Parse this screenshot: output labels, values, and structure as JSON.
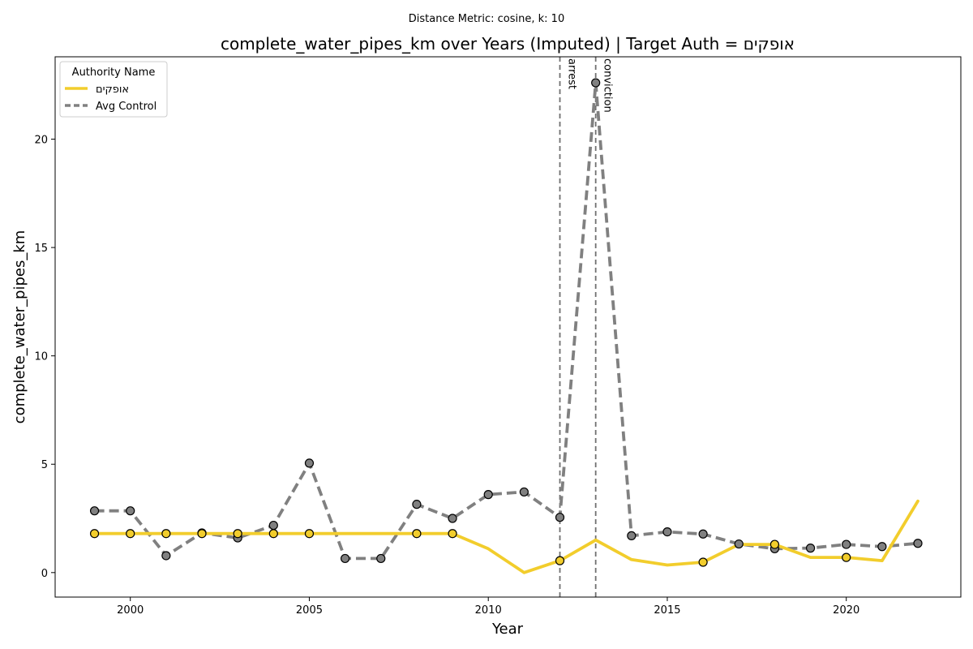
{
  "chart_data": {
    "type": "line",
    "suptitle": "Distance Metric: cosine, k: 10",
    "title": "complete_water_pipes_km over Years (Imputed) | Target Auth = אופקים",
    "xlabel": "Year",
    "ylabel": "complete_water_pipes_km",
    "xlim": [
      1997.9,
      2023.2
    ],
    "ylim": [
      -1.13,
      23.8
    ],
    "x_ticks": [
      2000,
      2005,
      2010,
      2015,
      2020
    ],
    "y_ticks": [
      0,
      5,
      10,
      15,
      20
    ],
    "grid": false,
    "legend": {
      "title": "Authority Name",
      "placement": "top-left"
    },
    "vlines": [
      {
        "x": 2012,
        "label": "arrest"
      },
      {
        "x": 2013,
        "label": "conviction"
      }
    ],
    "x": [
      1999,
      2000,
      2001,
      2002,
      2003,
      2004,
      2005,
      2006,
      2007,
      2008,
      2009,
      2010,
      2011,
      2012,
      2013,
      2014,
      2015,
      2016,
      2017,
      2018,
      2019,
      2020,
      2021,
      2022
    ],
    "series": [
      {
        "name": "אופקים",
        "color": "#f2cd2c",
        "style": "solid",
        "values": [
          1.8,
          1.8,
          1.8,
          1.8,
          1.8,
          1.8,
          1.8,
          1.8,
          1.8,
          1.8,
          1.8,
          1.1,
          0.0,
          0.55,
          1.5,
          0.6,
          0.35,
          0.48,
          1.3,
          1.3,
          0.7,
          0.7,
          0.55,
          3.3
        ],
        "markers": [
          true,
          true,
          true,
          true,
          true,
          true,
          true,
          false,
          false,
          true,
          true,
          false,
          false,
          true,
          false,
          false,
          false,
          true,
          false,
          true,
          false,
          true,
          false,
          false
        ]
      },
      {
        "name": "Avg Control",
        "color": "#808080",
        "style": "dashed",
        "values": [
          2.85,
          2.85,
          0.78,
          1.83,
          1.6,
          2.18,
          5.05,
          0.65,
          0.65,
          3.15,
          2.5,
          3.6,
          3.72,
          2.55,
          22.6,
          1.7,
          1.88,
          1.78,
          1.32,
          1.1,
          1.13,
          1.3,
          1.2,
          1.35
        ],
        "markers": [
          true,
          true,
          true,
          true,
          true,
          true,
          true,
          true,
          true,
          true,
          true,
          true,
          true,
          true,
          true,
          true,
          true,
          true,
          true,
          true,
          true,
          true,
          true,
          true
        ]
      }
    ]
  }
}
